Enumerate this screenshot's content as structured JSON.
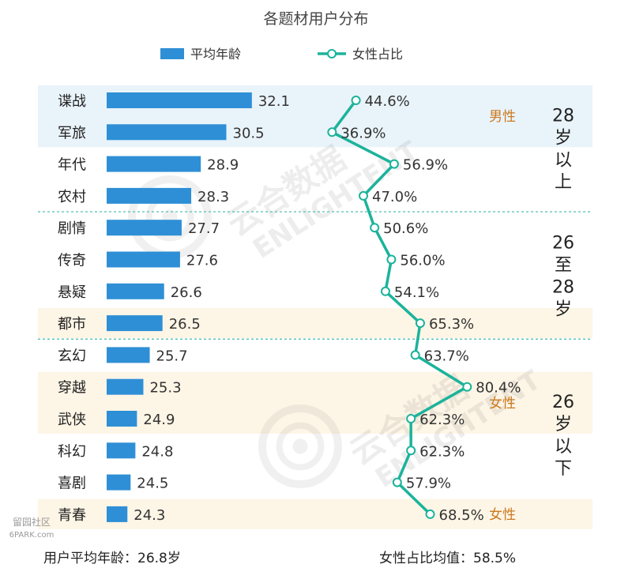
{
  "chart_data": {
    "type": "bar",
    "title": "各题材用户分布",
    "categories": [
      "谍战",
      "军旅",
      "年代",
      "农村",
      "剧情",
      "传奇",
      "悬疑",
      "都市",
      "玄幻",
      "穿越",
      "武侠",
      "科幻",
      "喜剧",
      "青春"
    ],
    "series": [
      {
        "name": "平均年龄",
        "type": "bar",
        "color": "#2e8fd6",
        "values": [
          32.1,
          30.5,
          28.9,
          28.3,
          27.7,
          27.6,
          26.6,
          26.5,
          25.7,
          25.3,
          24.9,
          24.8,
          24.5,
          24.3
        ],
        "labels": [
          "32.1",
          "30.5",
          "28.9",
          "28.3",
          "27.7",
          "27.6",
          "26.6",
          "26.5",
          "25.7",
          "25.3",
          "24.9",
          "24.8",
          "24.5",
          "24.3"
        ]
      },
      {
        "name": "女性占比",
        "type": "line",
        "color": "#1bb39b",
        "values": [
          44.6,
          36.9,
          56.9,
          47.0,
          50.6,
          56.0,
          54.1,
          65.3,
          63.7,
          80.4,
          62.3,
          62.3,
          57.9,
          68.5
        ],
        "labels": [
          "44.6%",
          "36.9%",
          "56.9%",
          "47.0%",
          "50.6%",
          "56.0%",
          "54.1%",
          "65.3%",
          "63.7%",
          "80.4%",
          "62.3%",
          "62.3%",
          "57.9%",
          "68.5%"
        ]
      }
    ],
    "age_groups": [
      {
        "label_chars": [
          "28",
          "岁",
          "以",
          "上"
        ]
      },
      {
        "label_chars": [
          "26",
          "至",
          "28",
          "岁"
        ]
      },
      {
        "label_chars": [
          "26",
          "岁",
          "以",
          "下"
        ]
      }
    ],
    "highlights": [
      {
        "label": "男性",
        "rows": [
          0,
          1
        ],
        "fill": "#e9f3fa",
        "text_color": "#cc7a1f"
      },
      {
        "label": "",
        "rows": [
          7,
          7
        ],
        "fill": "#fdf5e6",
        "text_color": "#cc7a1f"
      },
      {
        "label": "女性",
        "rows": [
          9,
          10
        ],
        "fill": "#fdf5e6",
        "text_color": "#cc7a1f"
      },
      {
        "label": "女性",
        "rows": [
          13,
          13
        ],
        "fill": "#fdf5e6",
        "text_color": "#cc7a1f"
      }
    ],
    "footer": {
      "avg_age_text": "用户平均年龄：26.8岁",
      "female_avg_text": "女性占比均值：58.5%"
    },
    "watermark": {
      "brand_cn": "云合数据",
      "brand_en": "ENLIGHTENT"
    },
    "corner_watermark": {
      "line1": "留园社区",
      "line2": "6PARK.com"
    }
  }
}
